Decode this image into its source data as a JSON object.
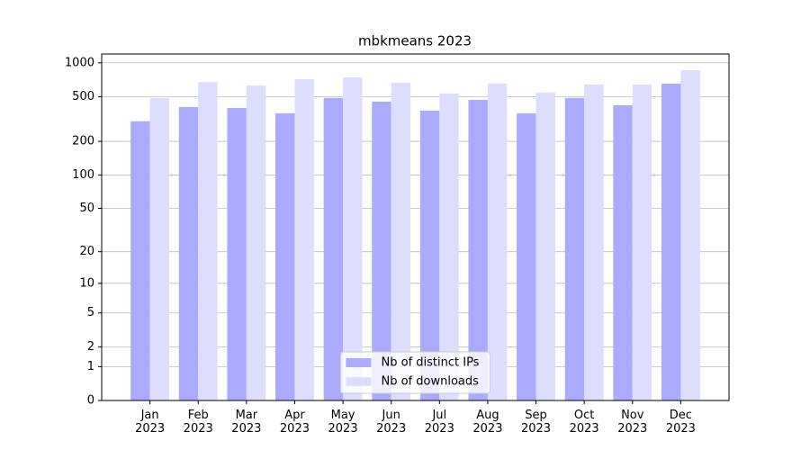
{
  "chart_data": {
    "type": "bar",
    "title": "mbkmeans 2023",
    "categories": [
      "Jan\n2023",
      "Feb\n2023",
      "Mar\n2023",
      "Apr\n2023",
      "May\n2023",
      "Jun\n2023",
      "Jul\n2023",
      "Aug\n2023",
      "Sep\n2023",
      "Oct\n2023",
      "Nov\n2023",
      "Dec\n2023"
    ],
    "series": [
      {
        "name": "Nb of distinct IPs",
        "color": "#aaaaff",
        "values": [
          302,
          405,
          397,
          356,
          487,
          452,
          376,
          469,
          356,
          487,
          420,
          654
        ]
      },
      {
        "name": "Nb of downloads",
        "color": "#ddddff",
        "values": [
          487,
          678,
          630,
          717,
          744,
          666,
          534,
          654,
          544,
          642,
          642,
          862
        ]
      }
    ],
    "yscale": "log1p",
    "ylim": [
      0,
      1200
    ],
    "yticks": [
      0,
      1,
      2,
      5,
      10,
      20,
      50,
      100,
      200,
      500,
      1000
    ],
    "grid": true,
    "legend": "lower center"
  }
}
